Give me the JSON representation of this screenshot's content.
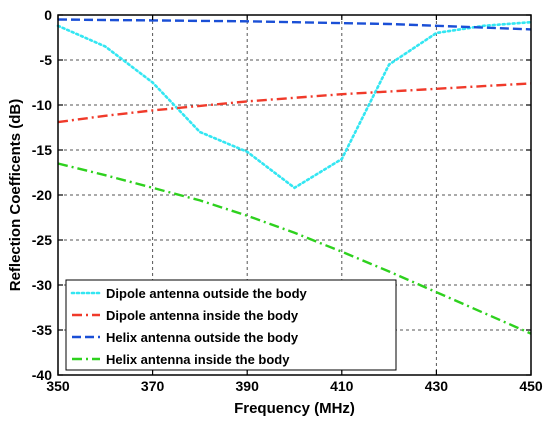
{
  "chart_data": {
    "type": "line",
    "title": "",
    "xlabel": "Frequency (MHz)",
    "ylabel": "Reflection Coefficents (dB)",
    "xlim": [
      350,
      450
    ],
    "ylim": [
      -40,
      0
    ],
    "xticks": [
      350,
      370,
      390,
      410,
      430,
      450
    ],
    "xtick_labels": [
      "350",
      "370",
      "390",
      "410",
      "430",
      "450"
    ],
    "yticks": [
      0,
      -5,
      -10,
      -15,
      -20,
      -25,
      -30,
      -35,
      -40
    ],
    "ytick_labels": [
      "0",
      "-5",
      "-10",
      "-15",
      "-20",
      "-25",
      "-30",
      "-35",
      "-40"
    ],
    "grid": true,
    "legend_position": "bottom-left",
    "series": [
      {
        "name": "Dipole antenna outside the body",
        "color": "#33e6f2",
        "dash": "dotted",
        "points": [
          [
            350,
            -1.2
          ],
          [
            360,
            -3.5
          ],
          [
            370,
            -7.5
          ],
          [
            380,
            -13.0
          ],
          [
            390,
            -15.2
          ],
          [
            400,
            -19.2
          ],
          [
            410,
            -16.0
          ],
          [
            420,
            -5.5
          ],
          [
            430,
            -2.0
          ],
          [
            440,
            -1.2
          ],
          [
            450,
            -0.8
          ]
        ]
      },
      {
        "name": "Dipole antenna inside the body",
        "color": "#f03a2a",
        "dash": "dashdot",
        "points": [
          [
            350,
            -11.9
          ],
          [
            360,
            -11.2
          ],
          [
            370,
            -10.6
          ],
          [
            380,
            -10.1
          ],
          [
            390,
            -9.6
          ],
          [
            400,
            -9.2
          ],
          [
            410,
            -8.8
          ],
          [
            420,
            -8.5
          ],
          [
            430,
            -8.2
          ],
          [
            440,
            -7.9
          ],
          [
            450,
            -7.6
          ]
        ]
      },
      {
        "name": "Helix antenna outside the body",
        "color": "#1a4fd6",
        "dash": "dashed",
        "points": [
          [
            350,
            -0.5
          ],
          [
            360,
            -0.55
          ],
          [
            370,
            -0.6
          ],
          [
            380,
            -0.65
          ],
          [
            390,
            -0.7
          ],
          [
            400,
            -0.8
          ],
          [
            410,
            -0.9
          ],
          [
            420,
            -1.0
          ],
          [
            430,
            -1.2
          ],
          [
            440,
            -1.4
          ],
          [
            450,
            -1.6
          ]
        ]
      },
      {
        "name": "Helix antenna inside the body",
        "color": "#2ed11e",
        "dash": "dashdot",
        "points": [
          [
            350,
            -16.5
          ],
          [
            360,
            -17.8
          ],
          [
            370,
            -19.2
          ],
          [
            380,
            -20.6
          ],
          [
            390,
            -22.3
          ],
          [
            400,
            -24.2
          ],
          [
            410,
            -26.3
          ],
          [
            420,
            -28.5
          ],
          [
            430,
            -30.8
          ],
          [
            440,
            -33.1
          ],
          [
            450,
            -35.4
          ]
        ]
      }
    ]
  }
}
